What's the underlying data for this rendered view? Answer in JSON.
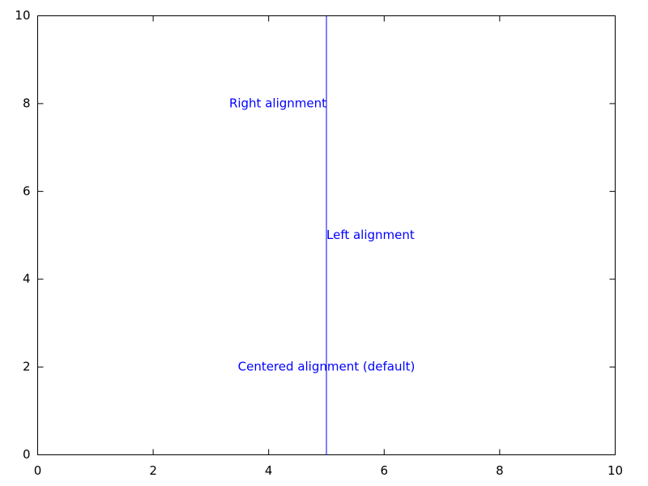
{
  "chart_data": {
    "type": "line",
    "series": [
      {
        "color": "#0000ff",
        "x": [
          5,
          5
        ],
        "values": [
          0,
          10
        ]
      }
    ],
    "xlim": [
      0,
      10
    ],
    "ylim": [
      0,
      10
    ],
    "xticks": [
      0,
      2,
      4,
      6,
      8,
      10
    ],
    "yticks": [
      0,
      2,
      4,
      6,
      8,
      10
    ],
    "grid": false,
    "annotations": [
      {
        "text": "Right alignment",
        "x": 5,
        "y": 8,
        "align": "right",
        "color": "#0000ff"
      },
      {
        "text": "Left alignment",
        "x": 5,
        "y": 5,
        "align": "left",
        "color": "#0000ff"
      },
      {
        "text": "Centered alignment (default)",
        "x": 5,
        "y": 2,
        "align": "center",
        "color": "#0000ff"
      }
    ]
  }
}
